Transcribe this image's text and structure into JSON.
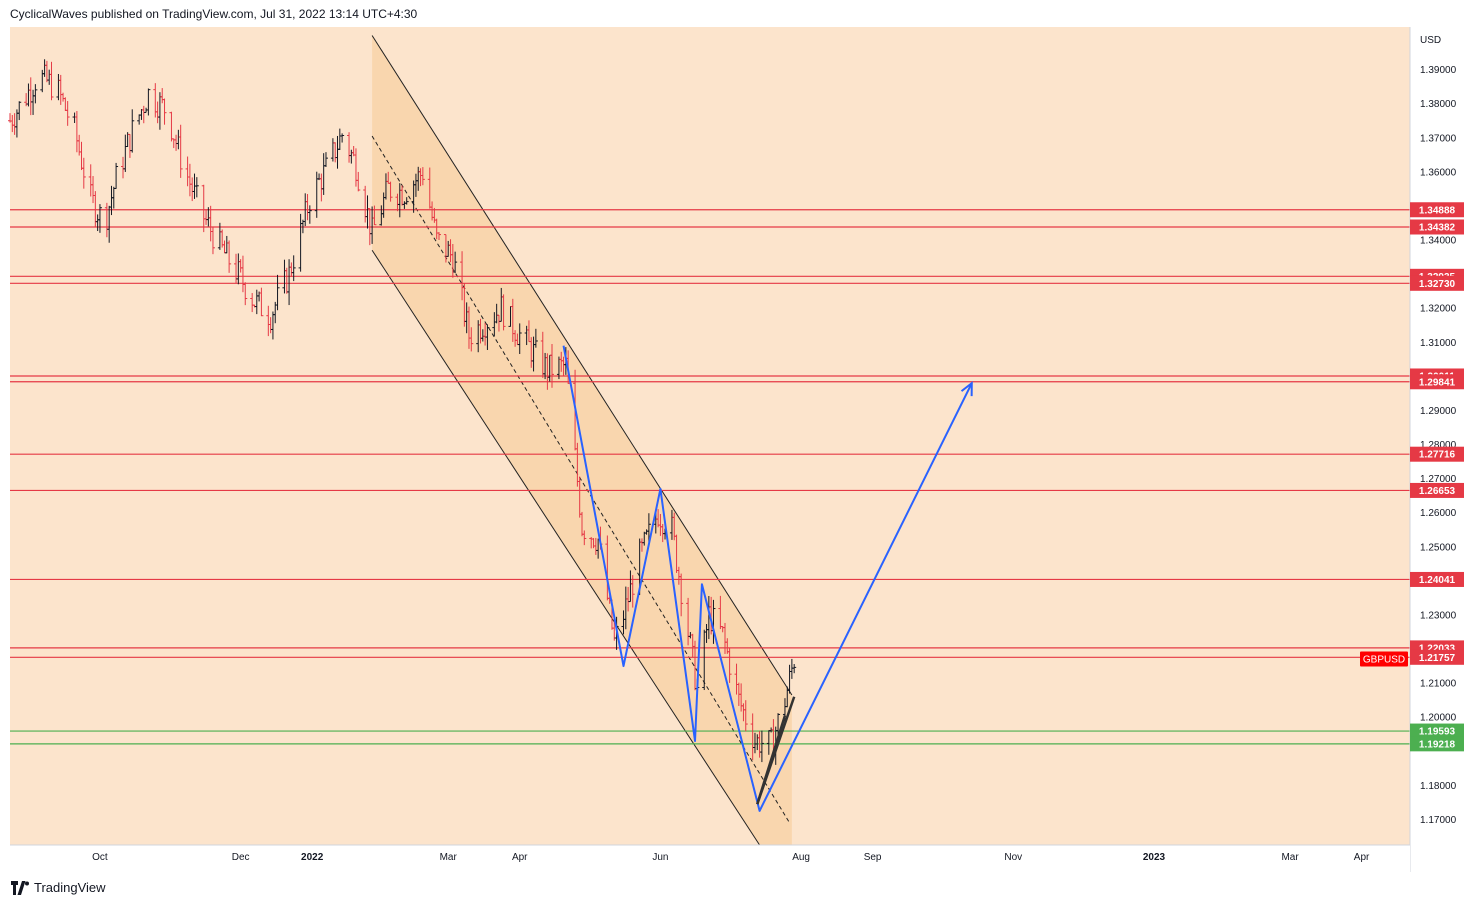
{
  "header": {
    "published": "CyclicalWaves published on TradingView.com, Jul 31, 2022 13:14 UTC+4:30"
  },
  "footer": {
    "brand": "TradingView"
  },
  "colors": {
    "background": "#fce4cc",
    "channel_fill": "#f9d6ae",
    "resistance": "#e53945",
    "support": "#4caf50",
    "wave": "#2962ff",
    "up_candle": "#131722",
    "down_candle": "#e53945",
    "trendline": "#333333"
  },
  "chart_data": {
    "type": "candlestick",
    "symbol": "GBPUSD",
    "currency": "USD",
    "ylim": [
      1.1625,
      1.4025
    ],
    "y_ticks": [
      1.39,
      1.38,
      1.37,
      1.36,
      1.35,
      1.34,
      1.32,
      1.31,
      1.29,
      1.28,
      1.27,
      1.26,
      1.25,
      1.23,
      1.21,
      1.2,
      1.18,
      1.17
    ],
    "y_tick_labels": [
      "1.39000",
      "1.38000",
      "1.37000",
      "1.36000",
      "1.35000",
      "1.34000",
      "1.32000",
      "1.31000",
      "1.29000",
      "1.28000",
      "1.27000",
      "1.26000",
      "1.25000",
      "1.23000",
      "1.21000",
      "1.20000",
      "1.18000",
      "1.17000"
    ],
    "x_labels": [
      "Oct",
      "Dec",
      "2022",
      "Mar",
      "Apr",
      "Jun",
      "Aug",
      "Sep",
      "Nov",
      "2023",
      "Mar",
      "Apr"
    ],
    "x_label_dates": [
      "2021-10-01",
      "2021-12-01",
      "2022-01-01",
      "2022-03-01",
      "2022-04-01",
      "2022-06-01",
      "2022-08-01",
      "2022-09-01",
      "2022-11-01",
      "2023-01-01",
      "2023-03-01",
      "2023-04-01"
    ],
    "x_range": [
      "2021-08-23",
      "2023-04-22"
    ],
    "resistance_levels": [
      {
        "value": 1.34888,
        "label": "1.34888"
      },
      {
        "value": 1.34382,
        "label": "1.34382"
      },
      {
        "value": 1.32935,
        "label": "1.32935"
      },
      {
        "value": 1.3273,
        "label": "1.32730"
      },
      {
        "value": 1.30011,
        "label": "1.30011"
      },
      {
        "value": 1.29841,
        "label": "1.29841"
      },
      {
        "value": 1.27716,
        "label": "1.27716"
      },
      {
        "value": 1.26653,
        "label": "1.26653"
      },
      {
        "value": 1.24041,
        "label": "1.24041"
      },
      {
        "value": 1.22033,
        "label": "1.22033"
      },
      {
        "value": 1.21757,
        "label": "1.21757"
      }
    ],
    "support_levels": [
      {
        "value": 1.19593,
        "label": "1.19593"
      },
      {
        "value": 1.19218,
        "label": "1.19218"
      }
    ],
    "last_price": {
      "value": 1.2175,
      "label": "GBPUSD"
    },
    "price_path": [
      [
        "2021-08-23",
        1.375
      ],
      [
        "2021-08-28",
        1.38
      ],
      [
        "2021-09-04",
        1.388
      ],
      [
        "2021-09-12",
        1.385
      ],
      [
        "2021-09-20",
        1.372
      ],
      [
        "2021-09-27",
        1.352
      ],
      [
        "2021-10-03",
        1.345
      ],
      [
        "2021-10-08",
        1.358
      ],
      [
        "2021-10-15",
        1.372
      ],
      [
        "2021-10-22",
        1.383
      ],
      [
        "2021-10-30",
        1.378
      ],
      [
        "2021-11-06",
        1.362
      ],
      [
        "2021-11-14",
        1.348
      ],
      [
        "2021-11-22",
        1.338
      ],
      [
        "2021-11-30",
        1.33
      ],
      [
        "2021-12-07",
        1.322
      ],
      [
        "2021-12-14",
        1.318
      ],
      [
        "2021-12-22",
        1.33
      ],
      [
        "2021-12-31",
        1.352
      ],
      [
        "2022-01-08",
        1.362
      ],
      [
        "2022-01-14",
        1.371
      ],
      [
        "2022-01-20",
        1.362
      ],
      [
        "2022-01-27",
        1.342
      ],
      [
        "2022-02-03",
        1.355
      ],
      [
        "2022-02-10",
        1.354
      ],
      [
        "2022-02-18",
        1.36
      ],
      [
        "2022-02-24",
        1.34
      ],
      [
        "2022-03-03",
        1.335
      ],
      [
        "2022-03-10",
        1.312
      ],
      [
        "2022-03-17",
        1.316
      ],
      [
        "2022-03-24",
        1.32
      ],
      [
        "2022-03-31",
        1.313
      ],
      [
        "2022-04-07",
        1.307
      ],
      [
        "2022-04-13",
        1.302
      ],
      [
        "2022-04-21",
        1.303
      ],
      [
        "2022-04-28",
        1.256
      ],
      [
        "2022-05-05",
        1.252
      ],
      [
        "2022-05-12",
        1.222
      ],
      [
        "2022-05-16",
        1.23
      ],
      [
        "2022-05-23",
        1.247
      ],
      [
        "2022-05-31",
        1.26
      ],
      [
        "2022-06-06",
        1.255
      ],
      [
        "2022-06-13",
        1.225
      ],
      [
        "2022-06-17",
        1.208
      ],
      [
        "2022-06-22",
        1.23
      ],
      [
        "2022-06-28",
        1.224
      ],
      [
        "2022-07-05",
        1.205
      ],
      [
        "2022-07-12",
        1.193
      ],
      [
        "2022-07-19",
        1.192
      ],
      [
        "2022-07-25",
        1.205
      ],
      [
        "2022-07-29",
        1.217
      ]
    ],
    "channel": {
      "upper": [
        [
          "2022-01-27",
          1.4
        ],
        [
          "2022-07-28",
          1.2065
        ]
      ],
      "lower": [
        [
          "2022-01-27",
          1.337
        ],
        [
          "2022-07-14",
          1.1625
        ]
      ],
      "mid": [
        [
          "2022-01-27",
          1.3705
        ],
        [
          "2022-07-27",
          1.169
        ]
      ]
    },
    "wave_path": [
      [
        "2022-04-20",
        1.309
      ],
      [
        "2022-05-16",
        1.215
      ],
      [
        "2022-06-01",
        1.267
      ],
      [
        "2022-06-16",
        1.193
      ],
      [
        "2022-06-19",
        1.239
      ],
      [
        "2022-07-14",
        1.1725
      ],
      [
        "2022-10-14",
        1.298
      ]
    ],
    "wedge_lines": [
      [
        [
          "2022-07-13",
          1.1745
        ],
        [
          "2022-07-29",
          1.206
        ]
      ],
      [
        [
          "2022-07-13",
          1.1745
        ],
        [
          "2022-07-25",
          1.2005
        ]
      ]
    ]
  }
}
